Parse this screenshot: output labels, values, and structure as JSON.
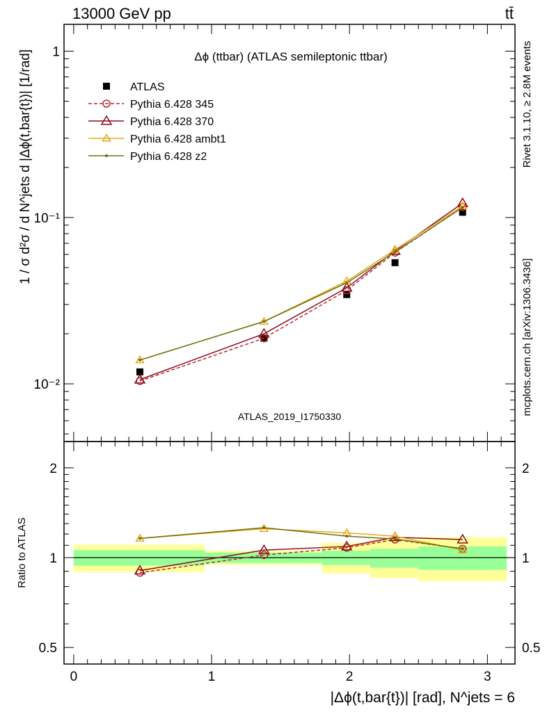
{
  "header": {
    "left": "13000 GeV pp",
    "right": "tt̄"
  },
  "side_labels": {
    "rivet": "Rivet 3.1.10, ≥ 2.8M events",
    "mcplots": "mcplots.cern.ch [arXiv:1306.3436]"
  },
  "chart_data": [
    {
      "panel": "main",
      "type": "line",
      "title": "Δϕ (ttbar) (ATLAS semileptonic ttbar)",
      "ylabel": "1 / σ d²σ / d N^jets d |Δϕ(t,bar{t})| [1/rad]",
      "watermark": "ATLAS_2019_I1750330",
      "yscale": "log",
      "ylim": [
        0.0045,
        1.45
      ],
      "xlim": [
        -0.07,
        3.2
      ],
      "y_ticks": [
        {
          "value": 1,
          "label": "1"
        },
        {
          "value": 0.1,
          "label": "10⁻¹"
        },
        {
          "value": 0.01,
          "label": "10⁻²"
        }
      ],
      "legend_position": "top-left",
      "series": [
        {
          "name": "ATLAS",
          "style": "data",
          "color": "#000000",
          "x": [
            0.48,
            1.38,
            1.98,
            2.33,
            2.82
          ],
          "y": [
            0.0118,
            0.0188,
            0.0344,
            0.0535,
            0.1075
          ]
        },
        {
          "name": "Pythia 6.428 345",
          "style": "dashed",
          "marker": "circle",
          "color": "#b5272e",
          "x": [
            0.48,
            1.38,
            1.98,
            2.33,
            2.82
          ],
          "y": [
            0.0104,
            0.0188,
            0.0365,
            0.0615,
            0.1155
          ]
        },
        {
          "name": "Pythia 6.428 370",
          "style": "solid",
          "marker": "triangle",
          "color": "#8c0a1e",
          "x": [
            0.48,
            1.38,
            1.98,
            2.33,
            2.82
          ],
          "y": [
            0.0106,
            0.02,
            0.0378,
            0.063,
            0.122
          ]
        },
        {
          "name": "Pythia 6.428 ambt1",
          "style": "solid",
          "marker": "triangle",
          "color": "#e8a818",
          "x": [
            0.48,
            1.38,
            1.98,
            2.33,
            2.82
          ],
          "y": [
            0.0139,
            0.0237,
            0.0415,
            0.064,
            0.117
          ]
        },
        {
          "name": "Pythia 6.428 z2",
          "style": "solid",
          "marker": "dot",
          "color": "#6b7010",
          "x": [
            0.48,
            1.38,
            1.98,
            2.33,
            2.82
          ],
          "y": [
            0.0139,
            0.0237,
            0.0405,
            0.062,
            0.115
          ]
        }
      ]
    },
    {
      "panel": "ratio",
      "type": "line",
      "ylabel": "Ratio to ATLAS",
      "xlabel": "|Δϕ(t,bar{t})| [rad], N^jets = 6",
      "yscale": "log",
      "ylim": [
        0.44,
        2.45
      ],
      "xlim": [
        -0.07,
        3.2
      ],
      "x_ticks": [
        {
          "value": 0,
          "label": "0"
        },
        {
          "value": 1,
          "label": "1"
        },
        {
          "value": 2,
          "label": "2"
        },
        {
          "value": 3,
          "label": "3"
        }
      ],
      "y_ticks": [
        {
          "value": 2,
          "label": "2"
        },
        {
          "value": 1,
          "label": "1"
        },
        {
          "value": 0.5,
          "label": "0.5"
        }
      ],
      "bands": [
        {
          "x0": 0.0,
          "x1": 0.95,
          "stat": [
            0.94,
            1.06
          ],
          "total": [
            0.895,
            1.105
          ]
        },
        {
          "x0": 0.95,
          "x1": 1.8,
          "stat": [
            0.96,
            1.04
          ],
          "total": [
            0.945,
            1.055
          ]
        },
        {
          "x0": 1.8,
          "x1": 2.15,
          "stat": [
            0.945,
            1.055
          ],
          "total": [
            0.885,
            1.12
          ]
        },
        {
          "x0": 2.15,
          "x1": 2.5,
          "stat": [
            0.925,
            1.07
          ],
          "total": [
            0.855,
            1.15
          ]
        },
        {
          "x0": 2.5,
          "x1": 3.14,
          "stat": [
            0.91,
            1.09
          ],
          "total": [
            0.835,
            1.17
          ]
        }
      ],
      "series": [
        {
          "name": "Pythia 6.428 345",
          "style": "dashed",
          "marker": "circle",
          "color": "#b5272e",
          "x": [
            0.48,
            1.38,
            1.98,
            2.33,
            2.82
          ],
          "y": [
            0.89,
            1.02,
            1.08,
            1.15,
            1.07
          ]
        },
        {
          "name": "Pythia 6.428 370",
          "style": "solid",
          "marker": "triangle",
          "color": "#8c0a1e",
          "x": [
            0.48,
            1.38,
            1.98,
            2.33,
            2.82
          ],
          "y": [
            0.905,
            1.06,
            1.09,
            1.17,
            1.15
          ]
        },
        {
          "name": "Pythia 6.428 ambt1",
          "style": "solid",
          "marker": "triangle",
          "color": "#e8a818",
          "x": [
            0.48,
            1.38,
            1.98,
            2.33,
            2.82
          ],
          "y": [
            1.16,
            1.25,
            1.21,
            1.18,
            1.06
          ]
        },
        {
          "name": "Pythia 6.428 z2",
          "style": "solid",
          "marker": "dot",
          "color": "#6b7010",
          "x": [
            0.48,
            1.38,
            1.98,
            2.33,
            2.82
          ],
          "y": [
            1.16,
            1.26,
            1.18,
            1.155,
            1.07
          ]
        }
      ]
    }
  ],
  "colors": {
    "stat_band": "#99ff99",
    "total_band": "#ffff99",
    "data": "#000000",
    "watermark": "#999999",
    "side_label": "#888888"
  }
}
